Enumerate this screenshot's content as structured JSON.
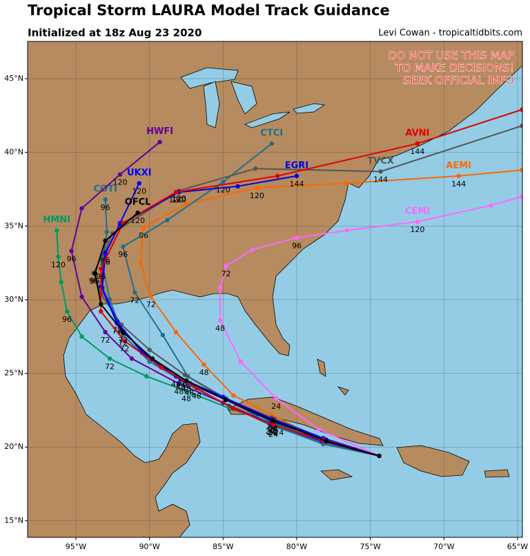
{
  "map": {
    "title": "Tropical Storm LAURA Model Track Guidance",
    "subtitle": "Initialized at 18z Aug 23 2020",
    "credit": "Levi Cowan - tropicaltidbits.com",
    "warning": [
      "DO NOT USE THIS MAP",
      "TO MAKE DECISIONS!",
      "SEEK OFFICIAL INFO"
    ],
    "xlim": [
      -98.28,
      -64.67
    ],
    "ylim": [
      13.87,
      47.53
    ],
    "xticks": [
      {
        "value": -95,
        "label": "95°W"
      },
      {
        "value": -90,
        "label": "90°W"
      },
      {
        "value": -85,
        "label": "85°W"
      },
      {
        "value": -80,
        "label": "80°W"
      },
      {
        "value": -75,
        "label": "75°W"
      },
      {
        "value": -70,
        "label": "70°W"
      },
      {
        "value": -65,
        "label": "65°W"
      }
    ],
    "yticks": [
      {
        "value": 15,
        "label": "15°N"
      },
      {
        "value": 20,
        "label": "20°N"
      },
      {
        "value": 25,
        "label": "25°N"
      },
      {
        "value": 30,
        "label": "30°N"
      },
      {
        "value": 35,
        "label": "35°N"
      },
      {
        "value": 40,
        "label": "40°N"
      },
      {
        "value": 45,
        "label": "45°N"
      }
    ],
    "grid": true,
    "tracks": [
      {
        "name": "HMNI",
        "color": "#009966",
        "lon": [
          -74.4,
          -78.0,
          -81.2,
          -84.5,
          -87.5,
          -90.2,
          -92.7,
          -94.6,
          -95.6,
          -96.0,
          -96.2,
          -96.3
        ],
        "lat": [
          19.4,
          20.3,
          21.5,
          22.6,
          23.8,
          24.8,
          26.0,
          27.5,
          29.2,
          31.2,
          32.9,
          34.7
        ],
        "labels": [
          null,
          null,
          24,
          null,
          48,
          null,
          72,
          null,
          96,
          null,
          120,
          null
        ]
      },
      {
        "name": "CEMI",
        "color": "#ff66ff",
        "lon": [
          -74.4,
          -78.5,
          -81.4,
          -83.8,
          -85.2,
          -85.2,
          -84.8,
          -83.0,
          -80.0,
          -76.6,
          -71.8,
          -66.8,
          -64.7
        ],
        "lat": [
          19.4,
          21.2,
          23.3,
          25.8,
          28.6,
          30.8,
          32.3,
          33.4,
          34.2,
          34.7,
          35.3,
          36.4,
          37.0
        ],
        "labels": [
          null,
          null,
          24,
          null,
          48,
          null,
          72,
          null,
          96,
          null,
          120,
          null,
          null
        ]
      },
      {
        "name": "AEMI",
        "color": "#ff6600",
        "lon": [
          -74.4,
          -78.4,
          -81.7,
          -84.3,
          -86.3,
          -88.2,
          -89.9,
          -90.6,
          -90.4,
          -87.5,
          -82.7,
          -76.6,
          -69.0,
          -64.7
        ],
        "lat": [
          19.4,
          20.5,
          22.2,
          23.5,
          25.6,
          27.8,
          30.2,
          32.5,
          34.9,
          36.5,
          37.6,
          37.9,
          38.4,
          38.8
        ],
        "labels": [
          null,
          null,
          24,
          null,
          48,
          null,
          72,
          null,
          96,
          null,
          120,
          null,
          144,
          null
        ]
      },
      {
        "name": "CTCI",
        "color": "#1f6f8f",
        "lon": [
          -74.4,
          -78.2,
          -81.7,
          -84.8,
          -87.4,
          -89.1,
          -91.0,
          -91.8,
          -88.8,
          -85.0,
          -81.7
        ],
        "lat": [
          19.4,
          20.2,
          21.5,
          23.3,
          24.8,
          27.6,
          30.5,
          33.6,
          35.4,
          38.0,
          40.6
        ],
        "labels": [
          null,
          null,
          24,
          null,
          48,
          null,
          72,
          96,
          null,
          120,
          null
        ]
      },
      {
        "name": "COTI",
        "color": "#1f6f8f",
        "lon": [
          -74.4,
          -78.1,
          -81.6,
          -84.6,
          -87.3,
          -90.0,
          -91.8,
          -92.7,
          -93.2,
          -92.9,
          -93.0
        ],
        "lat": [
          19.4,
          20.3,
          21.4,
          22.8,
          24.2,
          25.8,
          27.6,
          30.0,
          32.4,
          34.6,
          36.8
        ],
        "labels": [
          null,
          null,
          24,
          null,
          48,
          null,
          72,
          null,
          null,
          null,
          96
        ]
      },
      {
        "name": "TVCX",
        "color": "#555555",
        "lon": [
          -74.4,
          -78.2,
          -81.7,
          -84.9,
          -87.6,
          -90.0,
          -91.9,
          -93.3,
          -93.8,
          -92.5,
          -88.0,
          -82.8,
          -74.3,
          -64.7
        ],
        "lat": [
          19.4,
          20.6,
          22.0,
          23.3,
          24.9,
          26.6,
          28.3,
          30.4,
          31.8,
          34.5,
          37.4,
          38.9,
          38.7,
          41.8
        ],
        "labels": [
          null,
          null,
          24,
          null,
          48,
          null,
          72,
          null,
          96,
          null,
          120,
          null,
          144,
          null
        ]
      },
      {
        "name": "HWFI",
        "color": "#660099",
        "lon": [
          -74.4,
          -78.3,
          -81.8,
          -85.0,
          -88.0,
          -91.2,
          -93.0,
          -94.6,
          -95.3,
          -94.6,
          -92.0,
          -89.3
        ],
        "lat": [
          19.4,
          20.4,
          21.6,
          23.0,
          24.3,
          26.0,
          27.8,
          30.2,
          33.3,
          36.2,
          38.5,
          40.7
        ],
        "labels": [
          null,
          null,
          24,
          null,
          48,
          null,
          72,
          null,
          96,
          null,
          120,
          null
        ]
      },
      {
        "name": "EGRI",
        "color": "#0000dd",
        "lon": [
          -74.4,
          -78.0,
          -81.6,
          -84.8,
          -87.9,
          -90.3,
          -92.2,
          -93.3,
          -93.0,
          -92.0,
          -88.0,
          -84.0,
          -80.0
        ],
        "lat": [
          19.4,
          20.5,
          21.7,
          23.2,
          24.6,
          26.3,
          28.4,
          30.9,
          33.2,
          35.1,
          37.3,
          37.7,
          38.4
        ],
        "labels": [
          null,
          null,
          24,
          null,
          48,
          null,
          72,
          null,
          96,
          null,
          120,
          null,
          144
        ]
      },
      {
        "name": "UKXI",
        "color": "#0000ff",
        "lon": [
          -74.4,
          -78.2,
          -81.7,
          -85.0,
          -88.2,
          -90.5,
          -92.2,
          -93.2,
          -93.0,
          -92.0,
          -90.7
        ],
        "lat": [
          19.4,
          20.6,
          21.9,
          23.4,
          24.8,
          26.4,
          28.5,
          30.8,
          33.1,
          35.2,
          37.9
        ],
        "labels": [
          null,
          null,
          24,
          null,
          48,
          null,
          72,
          null,
          96,
          null,
          120
        ]
      },
      {
        "name": "AVNI",
        "color": "#e00000",
        "lon": [
          -74.4,
          -78.2,
          -81.6,
          -84.3,
          -86.8,
          -89.2,
          -91.7,
          -93.3,
          -93.3,
          -91.8,
          -88.2,
          -81.3,
          -71.8,
          -64.7
        ],
        "lat": [
          19.4,
          20.5,
          21.5,
          22.6,
          24.0,
          25.4,
          27.2,
          29.2,
          32.1,
          35.2,
          37.3,
          38.4,
          40.6,
          42.9
        ],
        "labels": [
          null,
          null,
          24,
          null,
          48,
          null,
          72,
          null,
          96,
          null,
          120,
          null,
          144,
          null
        ]
      },
      {
        "name": "OFCL",
        "color": "#000000",
        "lon": [
          -74.4,
          -78.0,
          -81.6,
          -84.8,
          -87.5,
          -89.8,
          -91.8,
          -93.3,
          -93.7,
          -93.0,
          -90.8
        ],
        "lat": [
          19.4,
          20.4,
          21.8,
          23.2,
          24.5,
          26.0,
          27.8,
          29.7,
          31.8,
          34.0,
          35.9
        ],
        "labels": [
          null,
          null,
          24,
          null,
          48,
          null,
          72,
          null,
          96,
          null,
          120
        ]
      }
    ]
  }
}
